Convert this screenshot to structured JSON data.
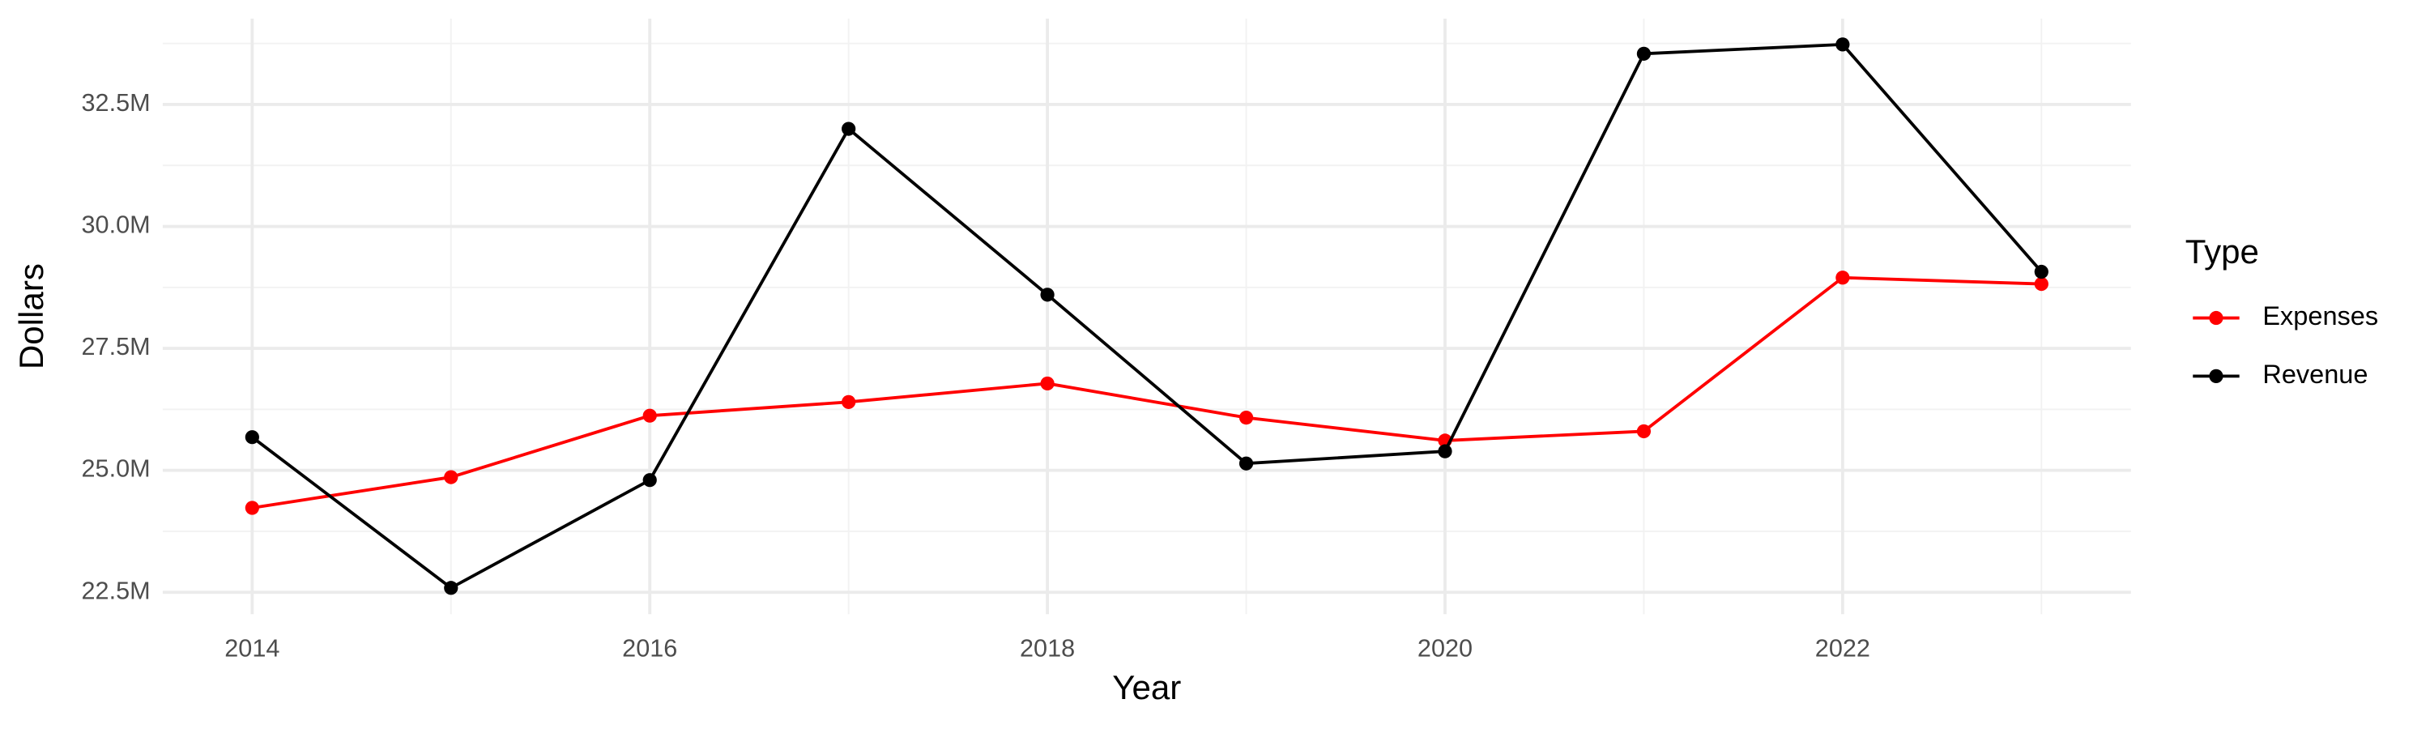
{
  "chart_data": {
    "type": "line",
    "x_label": "Year",
    "y_label": "Dollars",
    "legend_title": "Type",
    "legend_position": "right",
    "x": [
      2014,
      2015,
      2016,
      2017,
      2018,
      2019,
      2020,
      2021,
      2022,
      2023
    ],
    "series": [
      {
        "name": "Expenses",
        "color": "#ff0000",
        "values": [
          24230000,
          24860000,
          26120000,
          26400000,
          26780000,
          26080000,
          25610000,
          25800000,
          28950000,
          28820000
        ]
      },
      {
        "name": "Revenue",
        "color": "#000000",
        "values": [
          25680000,
          22590000,
          24800000,
          32000000,
          28600000,
          25140000,
          25390000,
          33540000,
          33730000,
          29070000
        ]
      }
    ],
    "xlim": [
      2013.55,
      2023.45
    ],
    "xticks": [
      2014,
      2016,
      2018,
      2020,
      2022
    ],
    "ylim": [
      22050000,
      34260000
    ],
    "yticks": [
      {
        "value": 22500000,
        "label": "22.5M"
      },
      {
        "value": 25000000,
        "label": "25.0M"
      },
      {
        "value": 27500000,
        "label": "27.5M"
      },
      {
        "value": 30000000,
        "label": "30.0M"
      },
      {
        "value": 32500000,
        "label": "32.5M"
      }
    ],
    "grid": true
  }
}
